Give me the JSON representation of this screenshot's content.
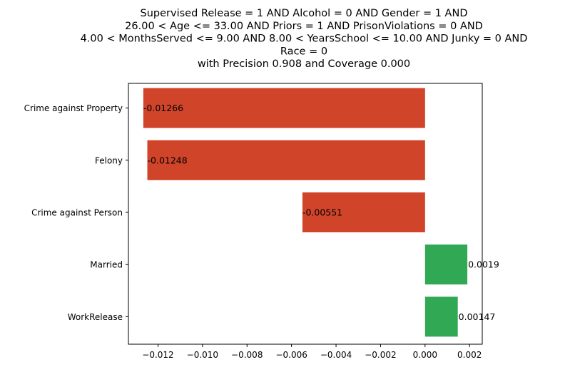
{
  "chart_data": {
    "type": "bar",
    "orientation": "horizontal",
    "title_lines": [
      "Supervised Release = 1 AND Alcohol = 0 AND Gender = 1 AND",
      "26.00 < Age <= 33.00 AND Priors = 1 AND PrisonViolations = 0 AND",
      "4.00 < MonthsServed <= 9.00 AND 8.00 < YearsSchool <= 10.00 AND Junky = 0 AND",
      "Race = 0",
      "with Precision 0.908 and Coverage 0.000"
    ],
    "categories": [
      "Crime against Property",
      "Felony",
      "Crime against Person",
      "Married",
      "WorkRelease"
    ],
    "values": [
      -0.01266,
      -0.01248,
      -0.00551,
      0.0019,
      0.00147
    ],
    "value_labels": [
      "-0.01266",
      "-0.01248",
      "-0.00551",
      "0.0019",
      "0.00147"
    ],
    "xlim": [
      -0.01333,
      0.00257
    ],
    "x_ticks": [
      -0.012,
      -0.01,
      -0.008,
      -0.006,
      -0.004,
      -0.002,
      0.0,
      0.002
    ],
    "x_tick_labels": [
      "−0.012",
      "−0.010",
      "−0.008",
      "−0.006",
      "−0.004",
      "−0.002",
      "0.000",
      "0.002"
    ],
    "colors": {
      "negative": "#d0442a",
      "positive": "#31a853"
    },
    "grid": false,
    "legend": "none"
  }
}
